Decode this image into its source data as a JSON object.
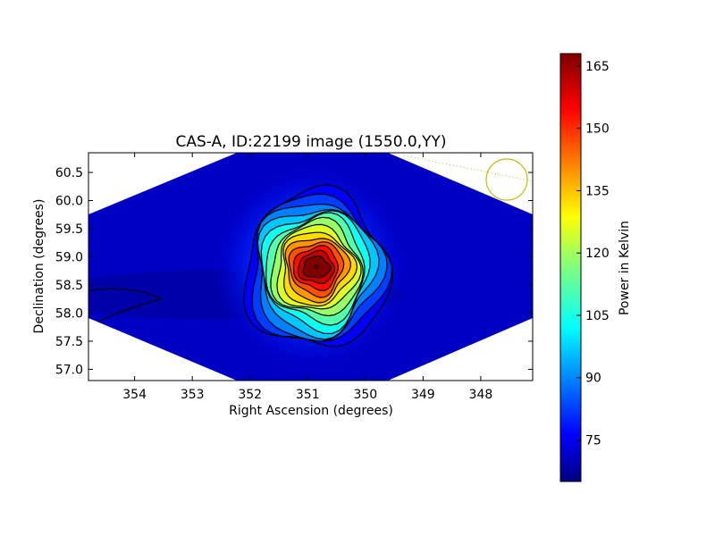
{
  "chart_data": {
    "type": "heatmap",
    "title": "CAS-A, ID:22199 image (1550.0,YY)",
    "xlabel": "Right Ascension (degrees)",
    "ylabel": "Declination (degrees)",
    "xlim": [
      354.8,
      347.1
    ],
    "ylim": [
      56.8,
      60.85
    ],
    "x_ticks": [
      "354",
      "353",
      "352",
      "351",
      "350",
      "349",
      "348"
    ],
    "x_tick_values": [
      354,
      353,
      352,
      351,
      350,
      349,
      348
    ],
    "y_ticks": [
      "57.0",
      "57.5",
      "58.0",
      "58.5",
      "59.0",
      "59.5",
      "60.0",
      "60.5"
    ],
    "y_tick_values": [
      57.0,
      57.5,
      58.0,
      58.5,
      59.0,
      59.5,
      60.0,
      60.5
    ],
    "peak": {
      "ra": 350.85,
      "dec": 58.82,
      "value": 168
    },
    "background_value": 70,
    "colorbar": {
      "label": "Power in Kelvin",
      "range": [
        65,
        168
      ],
      "ticks": [
        "75",
        "90",
        "105",
        "120",
        "135",
        "150",
        "165"
      ],
      "tick_values": [
        75,
        90,
        105,
        120,
        135,
        150,
        165
      ],
      "colormap": "jet"
    },
    "grid": false,
    "annotation": {
      "type": "beam-circle",
      "color": "#bfbf00"
    }
  }
}
